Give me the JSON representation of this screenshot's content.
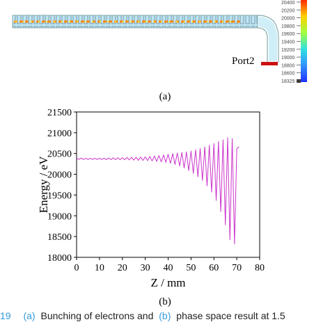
{
  "figure_a": {
    "port_label": "Port2",
    "label": "(a)",
    "colorbar_labels": [
      20400,
      20200,
      20000,
      19800,
      19600,
      19400,
      19200,
      19000,
      18800,
      18600,
      18325
    ]
  },
  "chart_data": {
    "type": "line",
    "label": "(b)",
    "x_label": "Z / mm",
    "y_label": "Energy / eV",
    "x": [
      0,
      1,
      2,
      3,
      4,
      5,
      6,
      7,
      8,
      9,
      10,
      11,
      12,
      13,
      14,
      15,
      16,
      17,
      18,
      19,
      20,
      21,
      22,
      23,
      24,
      25,
      26,
      27,
      28,
      29,
      30,
      31,
      32,
      33,
      34,
      35,
      36,
      37,
      38,
      39,
      40,
      41,
      42,
      43,
      44,
      45,
      46,
      47,
      48,
      49,
      50,
      51,
      52,
      53,
      54,
      55,
      56,
      57,
      58,
      59,
      60,
      61,
      62,
      63,
      64,
      65,
      66,
      67,
      68,
      69,
      70,
      71
    ],
    "series": [
      {
        "color": "#cc33cc",
        "values": [
          20390,
          20355,
          20390,
          20355,
          20385,
          20355,
          20385,
          20355,
          20385,
          20355,
          20385,
          20355,
          20390,
          20352,
          20395,
          20350,
          20395,
          20350,
          20400,
          20350,
          20400,
          20348,
          20405,
          20345,
          20410,
          20340,
          20410,
          20335,
          20415,
          20332,
          20420,
          20328,
          20430,
          20320,
          20440,
          20310,
          20450,
          20298,
          20465,
          20285,
          20480,
          20265,
          20495,
          20235,
          20510,
          20200,
          20525,
          20150,
          20540,
          20090,
          20560,
          20020,
          20590,
          19940,
          20620,
          19850,
          20660,
          19720,
          20700,
          19570,
          20740,
          19370,
          20790,
          19100,
          20830,
          18780,
          20880,
          18420,
          20860,
          18320,
          20620,
          20660
        ]
      }
    ],
    "xlim": [
      0,
      80
    ],
    "xticks": [
      0,
      10,
      20,
      30,
      40,
      50,
      60,
      70,
      80
    ],
    "ylim": [
      18000,
      21500
    ],
    "yticks": [
      18000,
      18500,
      19000,
      19500,
      20000,
      20500,
      21000,
      21500
    ]
  },
  "caption": {
    "number": "19",
    "ref_a": "(a)",
    "text_1": "Bunching of electrons and",
    "ref_b": "(b)",
    "text_2": "phase space result at 1.5"
  }
}
